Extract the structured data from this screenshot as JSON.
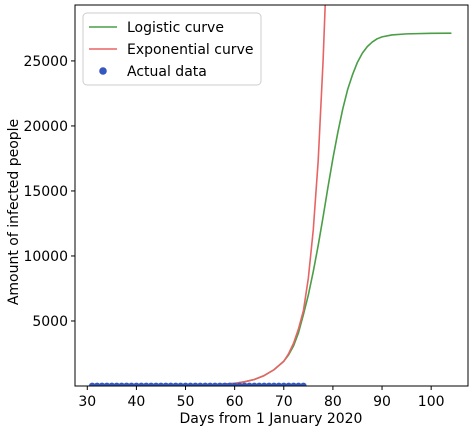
{
  "chart_data": {
    "type": "line",
    "title": "",
    "xlabel": "Days from 1 January 2020",
    "ylabel": "Amount of infected people",
    "xlim": [
      27.5,
      107.5
    ],
    "ylim": [
      0,
      29300
    ],
    "xticks": [
      30,
      40,
      50,
      60,
      70,
      80,
      90,
      100
    ],
    "yticks": [
      5000,
      10000,
      15000,
      20000,
      25000
    ],
    "xtick_labels": [
      "30",
      "40",
      "50",
      "60",
      "70",
      "80",
      "90",
      "100"
    ],
    "ytick_labels": [
      "5000",
      "10000",
      "15000",
      "20000",
      "25000"
    ],
    "grid": false,
    "legend_position": "upper-left",
    "colors": {
      "logistic": "#4a9e46",
      "exponential": "#e86464",
      "actual": "#3457c0"
    },
    "series": [
      {
        "name": "Logistic curve",
        "kind": "line",
        "x": [
          31,
          40,
          50,
          55,
          60,
          62,
          64,
          66,
          68,
          70,
          71,
          72,
          73,
          74,
          75,
          76,
          77,
          78,
          79,
          80,
          81,
          82,
          83,
          84,
          85,
          86,
          87,
          88,
          89,
          90,
          92,
          95,
          100,
          104
        ],
        "values": [
          1,
          5,
          30,
          80,
          200,
          320,
          500,
          800,
          1250,
          1900,
          2400,
          3100,
          4100,
          5500,
          7000,
          8800,
          10800,
          13000,
          15300,
          17500,
          19500,
          21300,
          22800,
          23950,
          24900,
          25600,
          26100,
          26450,
          26700,
          26850,
          27000,
          27080,
          27120,
          27130
        ]
      },
      {
        "name": "Exponential curve",
        "kind": "line",
        "x": [
          31,
          40,
          50,
          55,
          60,
          62,
          64,
          66,
          68,
          70,
          71,
          72,
          73,
          74,
          75,
          76,
          77,
          78,
          78.5
        ],
        "values": [
          1,
          5,
          30,
          80,
          200,
          320,
          500,
          800,
          1250,
          1900,
          2500,
          3300,
          4400,
          5800,
          8300,
          12000,
          17300,
          25000,
          30000
        ]
      },
      {
        "name": "Actual data",
        "kind": "scatter",
        "x": [
          31,
          32,
          33,
          34,
          35,
          36,
          37,
          38,
          39,
          40,
          41,
          42,
          43,
          44,
          45,
          46,
          47,
          48,
          49,
          50,
          51,
          52,
          53,
          54,
          55,
          56,
          57,
          58,
          59,
          60,
          61,
          62,
          63,
          64,
          65,
          66,
          67,
          68,
          69,
          70,
          71,
          72,
          73,
          74
        ],
        "values": [
          2,
          2,
          2,
          2,
          2,
          2,
          2,
          3,
          3,
          3,
          3,
          3,
          3,
          3,
          3,
          3,
          3,
          3,
          3,
          3,
          3,
          3,
          3,
          3,
          3,
          3,
          3,
          3,
          3,
          3,
          3,
          3,
          3,
          3,
          3,
          3,
          3,
          3,
          3,
          3,
          3,
          3,
          3,
          3
        ]
      }
    ]
  }
}
